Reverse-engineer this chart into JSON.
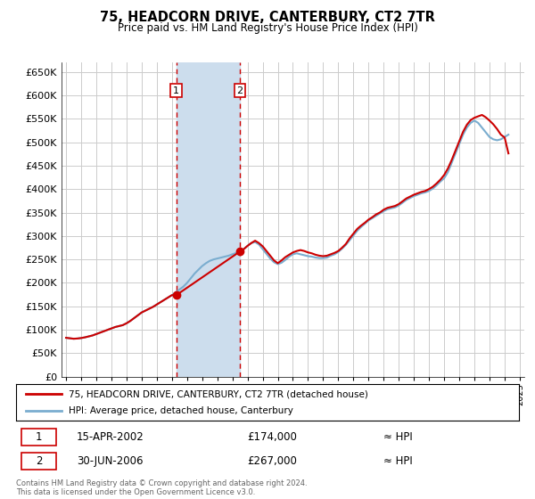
{
  "title": "75, HEADCORN DRIVE, CANTERBURY, CT2 7TR",
  "subtitle": "Price paid vs. HM Land Registry's House Price Index (HPI)",
  "ylim": [
    0,
    670000
  ],
  "yticks": [
    0,
    50000,
    100000,
    150000,
    200000,
    250000,
    300000,
    350000,
    400000,
    450000,
    500000,
    550000,
    600000,
    650000
  ],
  "xlim_start": 1994.7,
  "xlim_end": 2025.3,
  "sale1_year": 2002.29,
  "sale1_price": 174000,
  "sale1_label": "1",
  "sale1_date": "15-APR-2002",
  "sale2_year": 2006.5,
  "sale2_price": 267000,
  "sale2_label": "2",
  "sale2_date": "30-JUN-2006",
  "shade_color": "#ccdded",
  "vline_color": "#cc0000",
  "hpi_color": "#7aadcf",
  "price_color": "#cc0000",
  "legend_label1": "75, HEADCORN DRIVE, CANTERBURY, CT2 7TR (detached house)",
  "legend_label2": "HPI: Average price, detached house, Canterbury",
  "footer": "Contains HM Land Registry data © Crown copyright and database right 2024.\nThis data is licensed under the Open Government Licence v3.0.",
  "background_color": "#ffffff",
  "grid_color": "#cccccc",
  "hpi_data_years": [
    1995.0,
    1995.25,
    1995.5,
    1995.75,
    1996.0,
    1996.25,
    1996.5,
    1996.75,
    1997.0,
    1997.25,
    1997.5,
    1997.75,
    1998.0,
    1998.25,
    1998.5,
    1998.75,
    1999.0,
    1999.25,
    1999.5,
    1999.75,
    2000.0,
    2000.25,
    2000.5,
    2000.75,
    2001.0,
    2001.25,
    2001.5,
    2001.75,
    2002.0,
    2002.25,
    2002.5,
    2002.75,
    2003.0,
    2003.25,
    2003.5,
    2003.75,
    2004.0,
    2004.25,
    2004.5,
    2004.75,
    2005.0,
    2005.25,
    2005.5,
    2005.75,
    2006.0,
    2006.25,
    2006.5,
    2006.75,
    2007.0,
    2007.25,
    2007.5,
    2007.75,
    2008.0,
    2008.25,
    2008.5,
    2008.75,
    2009.0,
    2009.25,
    2009.5,
    2009.75,
    2010.0,
    2010.25,
    2010.5,
    2010.75,
    2011.0,
    2011.25,
    2011.5,
    2011.75,
    2012.0,
    2012.25,
    2012.5,
    2012.75,
    2013.0,
    2013.25,
    2013.5,
    2013.75,
    2014.0,
    2014.25,
    2014.5,
    2014.75,
    2015.0,
    2015.25,
    2015.5,
    2015.75,
    2016.0,
    2016.25,
    2016.5,
    2016.75,
    2017.0,
    2017.25,
    2017.5,
    2017.75,
    2018.0,
    2018.25,
    2018.5,
    2018.75,
    2019.0,
    2019.25,
    2019.5,
    2019.75,
    2020.0,
    2020.25,
    2020.5,
    2020.75,
    2021.0,
    2021.25,
    2021.5,
    2021.75,
    2022.0,
    2022.25,
    2022.5,
    2022.75,
    2023.0,
    2023.25,
    2023.5,
    2023.75,
    2024.0,
    2024.25
  ],
  "hpi_data_values": [
    83000,
    82000,
    81000,
    81500,
    82500,
    84000,
    86000,
    88000,
    91000,
    94000,
    97000,
    100000,
    103000,
    106000,
    108000,
    110000,
    114000,
    119000,
    125000,
    131000,
    137000,
    141000,
    145000,
    149000,
    154000,
    159000,
    164000,
    169000,
    174000,
    180000,
    186000,
    192000,
    200000,
    210000,
    220000,
    228000,
    236000,
    242000,
    247000,
    250000,
    252000,
    254000,
    256000,
    258000,
    261000,
    264000,
    268000,
    272000,
    279000,
    285000,
    287000,
    282000,
    272000,
    262000,
    252000,
    244000,
    240000,
    243000,
    249000,
    256000,
    261000,
    263000,
    261000,
    259000,
    257000,
    256000,
    254000,
    253000,
    253000,
    254000,
    258000,
    261000,
    266000,
    273000,
    281000,
    291000,
    301000,
    311000,
    319000,
    326000,
    333000,
    338000,
    343000,
    348000,
    353000,
    357000,
    359000,
    361000,
    365000,
    371000,
    377000,
    381000,
    385000,
    388000,
    391000,
    393000,
    396000,
    401000,
    408000,
    416000,
    423000,
    436000,
    456000,
    476000,
    496000,
    516000,
    531000,
    541000,
    546000,
    541000,
    531000,
    521000,
    511000,
    506000,
    504000,
    506000,
    511000,
    516000
  ],
  "price_data_years": [
    1995.0,
    1995.25,
    1995.5,
    1995.75,
    1996.0,
    1996.25,
    1996.5,
    1996.75,
    1997.0,
    1997.25,
    1997.5,
    1997.75,
    1998.0,
    1998.25,
    1998.5,
    1998.75,
    1999.0,
    1999.25,
    1999.5,
    1999.75,
    2000.0,
    2000.25,
    2000.5,
    2000.75,
    2001.0,
    2001.25,
    2001.5,
    2001.75,
    2002.0,
    2002.29,
    2006.5,
    2006.75,
    2007.0,
    2007.25,
    2007.5,
    2007.75,
    2008.0,
    2008.25,
    2008.5,
    2008.75,
    2009.0,
    2009.25,
    2009.5,
    2009.75,
    2010.0,
    2010.25,
    2010.5,
    2010.75,
    2011.0,
    2011.25,
    2011.5,
    2011.75,
    2012.0,
    2012.25,
    2012.5,
    2012.75,
    2013.0,
    2013.25,
    2013.5,
    2013.75,
    2014.0,
    2014.25,
    2014.5,
    2014.75,
    2015.0,
    2015.25,
    2015.5,
    2015.75,
    2016.0,
    2016.25,
    2016.5,
    2016.75,
    2017.0,
    2017.25,
    2017.5,
    2017.75,
    2018.0,
    2018.25,
    2018.5,
    2018.75,
    2019.0,
    2019.25,
    2019.5,
    2019.75,
    2020.0,
    2020.25,
    2020.5,
    2020.75,
    2021.0,
    2021.25,
    2021.5,
    2021.75,
    2022.0,
    2022.25,
    2022.5,
    2022.75,
    2023.0,
    2023.25,
    2023.5,
    2023.75,
    2024.0,
    2024.25
  ],
  "price_data_values": [
    83000,
    82000,
    81000,
    81500,
    82500,
    84000,
    86000,
    88000,
    91000,
    94000,
    97000,
    100000,
    103000,
    106000,
    108000,
    110000,
    114000,
    119000,
    125000,
    131000,
    137000,
    141000,
    145000,
    149000,
    154000,
    159000,
    164000,
    169000,
    174000,
    174000,
    267000,
    272000,
    279000,
    285000,
    290000,
    285000,
    278000,
    268000,
    258000,
    248000,
    242000,
    248000,
    255000,
    260000,
    265000,
    268000,
    270000,
    268000,
    265000,
    263000,
    260000,
    258000,
    257000,
    258000,
    261000,
    264000,
    268000,
    275000,
    283000,
    295000,
    305000,
    315000,
    322000,
    328000,
    335000,
    340000,
    346000,
    350000,
    356000,
    360000,
    362000,
    364000,
    368000,
    374000,
    380000,
    384000,
    388000,
    391000,
    394000,
    396000,
    400000,
    405000,
    412000,
    420000,
    430000,
    444000,
    462000,
    482000,
    502000,
    522000,
    537000,
    547000,
    552000,
    555000,
    558000,
    553000,
    546000,
    538000,
    528000,
    516000,
    510000,
    476000
  ]
}
